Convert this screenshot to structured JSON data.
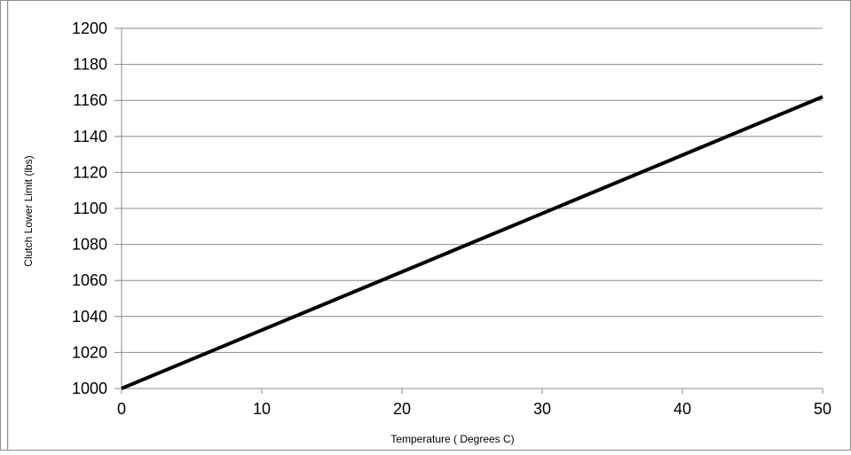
{
  "chart_data": {
    "type": "line",
    "title": "",
    "xlabel": "Temperature ( Degrees C)",
    "ylabel": "Clutch Lower Limit (lbs)",
    "xlim": [
      0,
      50
    ],
    "ylim": [
      1000,
      1200
    ],
    "x_ticks": [
      0,
      10,
      20,
      30,
      40,
      50
    ],
    "y_ticks": [
      1000,
      1020,
      1040,
      1060,
      1080,
      1100,
      1120,
      1140,
      1160,
      1180,
      1200
    ],
    "grid": "horizontal",
    "legend": "none",
    "line_color": "#000000",
    "series": [
      {
        "x": [
          0,
          10,
          20,
          30,
          40,
          50
        ],
        "y": [
          1000,
          1032.4,
          1064.8,
          1097.2,
          1129.6,
          1162
        ]
      }
    ]
  }
}
